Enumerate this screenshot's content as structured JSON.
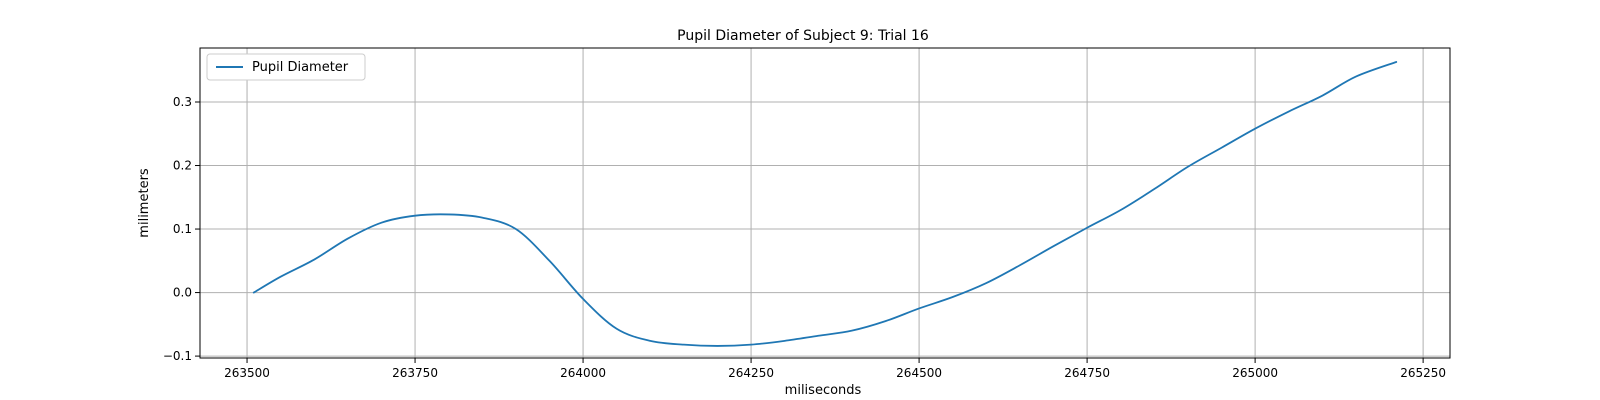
{
  "chart_data": {
    "type": "line",
    "title": "Pupil Diameter of Subject 9: Trial 16",
    "xlabel": "miliseconds",
    "ylabel": "milimeters",
    "xlim": [
      263430,
      265290
    ],
    "ylim": [
      -0.103,
      0.385
    ],
    "xticks": [
      263500,
      263750,
      264000,
      264250,
      264500,
      264750,
      265000,
      265250
    ],
    "yticks": [
      -0.1,
      0.0,
      0.1,
      0.2,
      0.3
    ],
    "xtick_labels": [
      "263500",
      "263750",
      "264000",
      "264250",
      "264500",
      "264750",
      "265000",
      "265250"
    ],
    "ytick_labels": [
      "−0.1",
      "0.0",
      "0.1",
      "0.2",
      "0.3"
    ],
    "grid": true,
    "legend_position": "top-left",
    "series": [
      {
        "name": "Pupil Diameter",
        "color": "#1f77b4",
        "x": [
          263510,
          263550,
          263600,
          263650,
          263700,
          263750,
          263800,
          263850,
          263900,
          263950,
          264000,
          264050,
          264100,
          264150,
          264200,
          264250,
          264300,
          264350,
          264400,
          264450,
          264500,
          264550,
          264600,
          264650,
          264700,
          264750,
          264800,
          264850,
          264900,
          264950,
          265000,
          265050,
          265100,
          265150,
          265210
        ],
        "y": [
          0.0,
          0.025,
          0.052,
          0.085,
          0.11,
          0.121,
          0.123,
          0.118,
          0.1,
          0.05,
          -0.01,
          -0.057,
          -0.076,
          -0.082,
          -0.084,
          -0.082,
          -0.076,
          -0.068,
          -0.06,
          -0.045,
          -0.025,
          -0.007,
          0.015,
          0.043,
          0.073,
          0.102,
          0.13,
          0.163,
          0.198,
          0.228,
          0.258,
          0.285,
          0.31,
          0.34,
          0.363
        ]
      }
    ]
  }
}
